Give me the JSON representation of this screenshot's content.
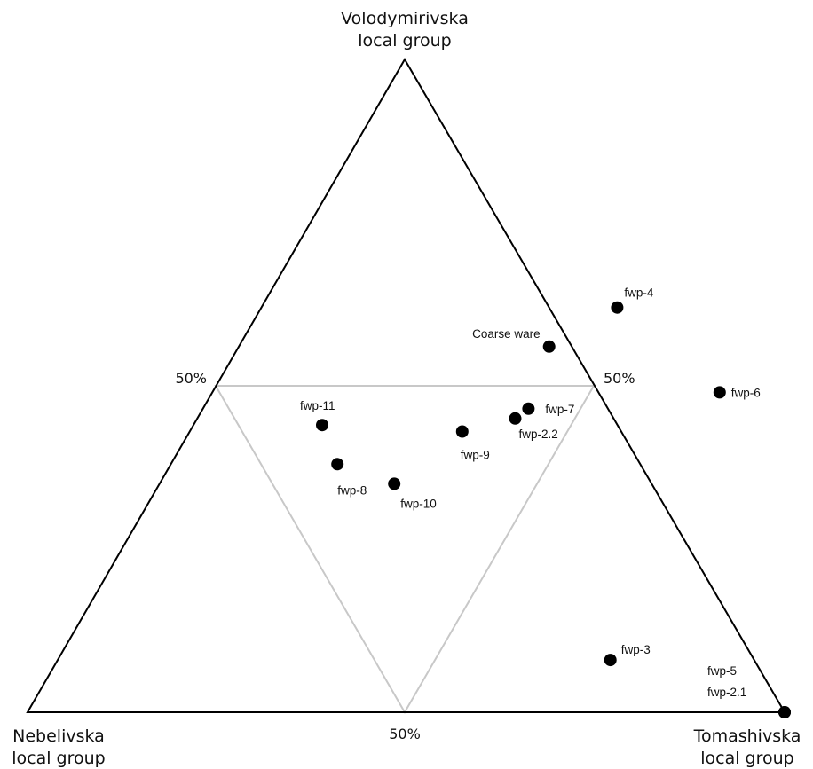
{
  "chart_data": {
    "type": "ternary",
    "axes": {
      "top": [
        "Volodymirivska",
        "local group"
      ],
      "left": [
        "Nebelivska",
        "local group"
      ],
      "right": [
        "Tomashivska",
        "local group"
      ]
    },
    "midpoint_label": "50%",
    "points": [
      {
        "label": "fwp-4",
        "Volodymirivska": 0.62,
        "Tomashivska": 0.47
      },
      {
        "label": "Coarse ware",
        "Volodymirivska": 0.56,
        "Tomashivska": 0.41
      },
      {
        "label": "fwp-6",
        "Volodymirivska": 0.49,
        "Tomashivska": 0.67
      },
      {
        "label": "fwp-7",
        "Volodymirivska": 0.465,
        "Tomashivska": 0.43
      },
      {
        "label": "fwp-2.2",
        "Volodymirivska": 0.45,
        "Tomashivska": 0.42
      },
      {
        "label": "fwp-11",
        "Volodymirivska": 0.44,
        "Tomashivska": 0.17
      },
      {
        "label": "fwp-9",
        "Volodymirivska": 0.43,
        "Tomashivska": 0.36
      },
      {
        "label": "fwp-8",
        "Volodymirivska": 0.38,
        "Tomashivska": 0.22
      },
      {
        "label": "fwp-10",
        "Volodymirivska": 0.35,
        "Tomashivska": 0.31
      },
      {
        "label": "fwp-3",
        "Volodymirivska": 0.08,
        "Tomashivska": 0.73
      },
      {
        "label": "fwp-5",
        "Volodymirivska": 0.0,
        "Tomashivska": 1.0
      },
      {
        "label": "fwp-2.1",
        "Volodymirivska": 0.0,
        "Tomashivska": 1.0
      }
    ]
  }
}
